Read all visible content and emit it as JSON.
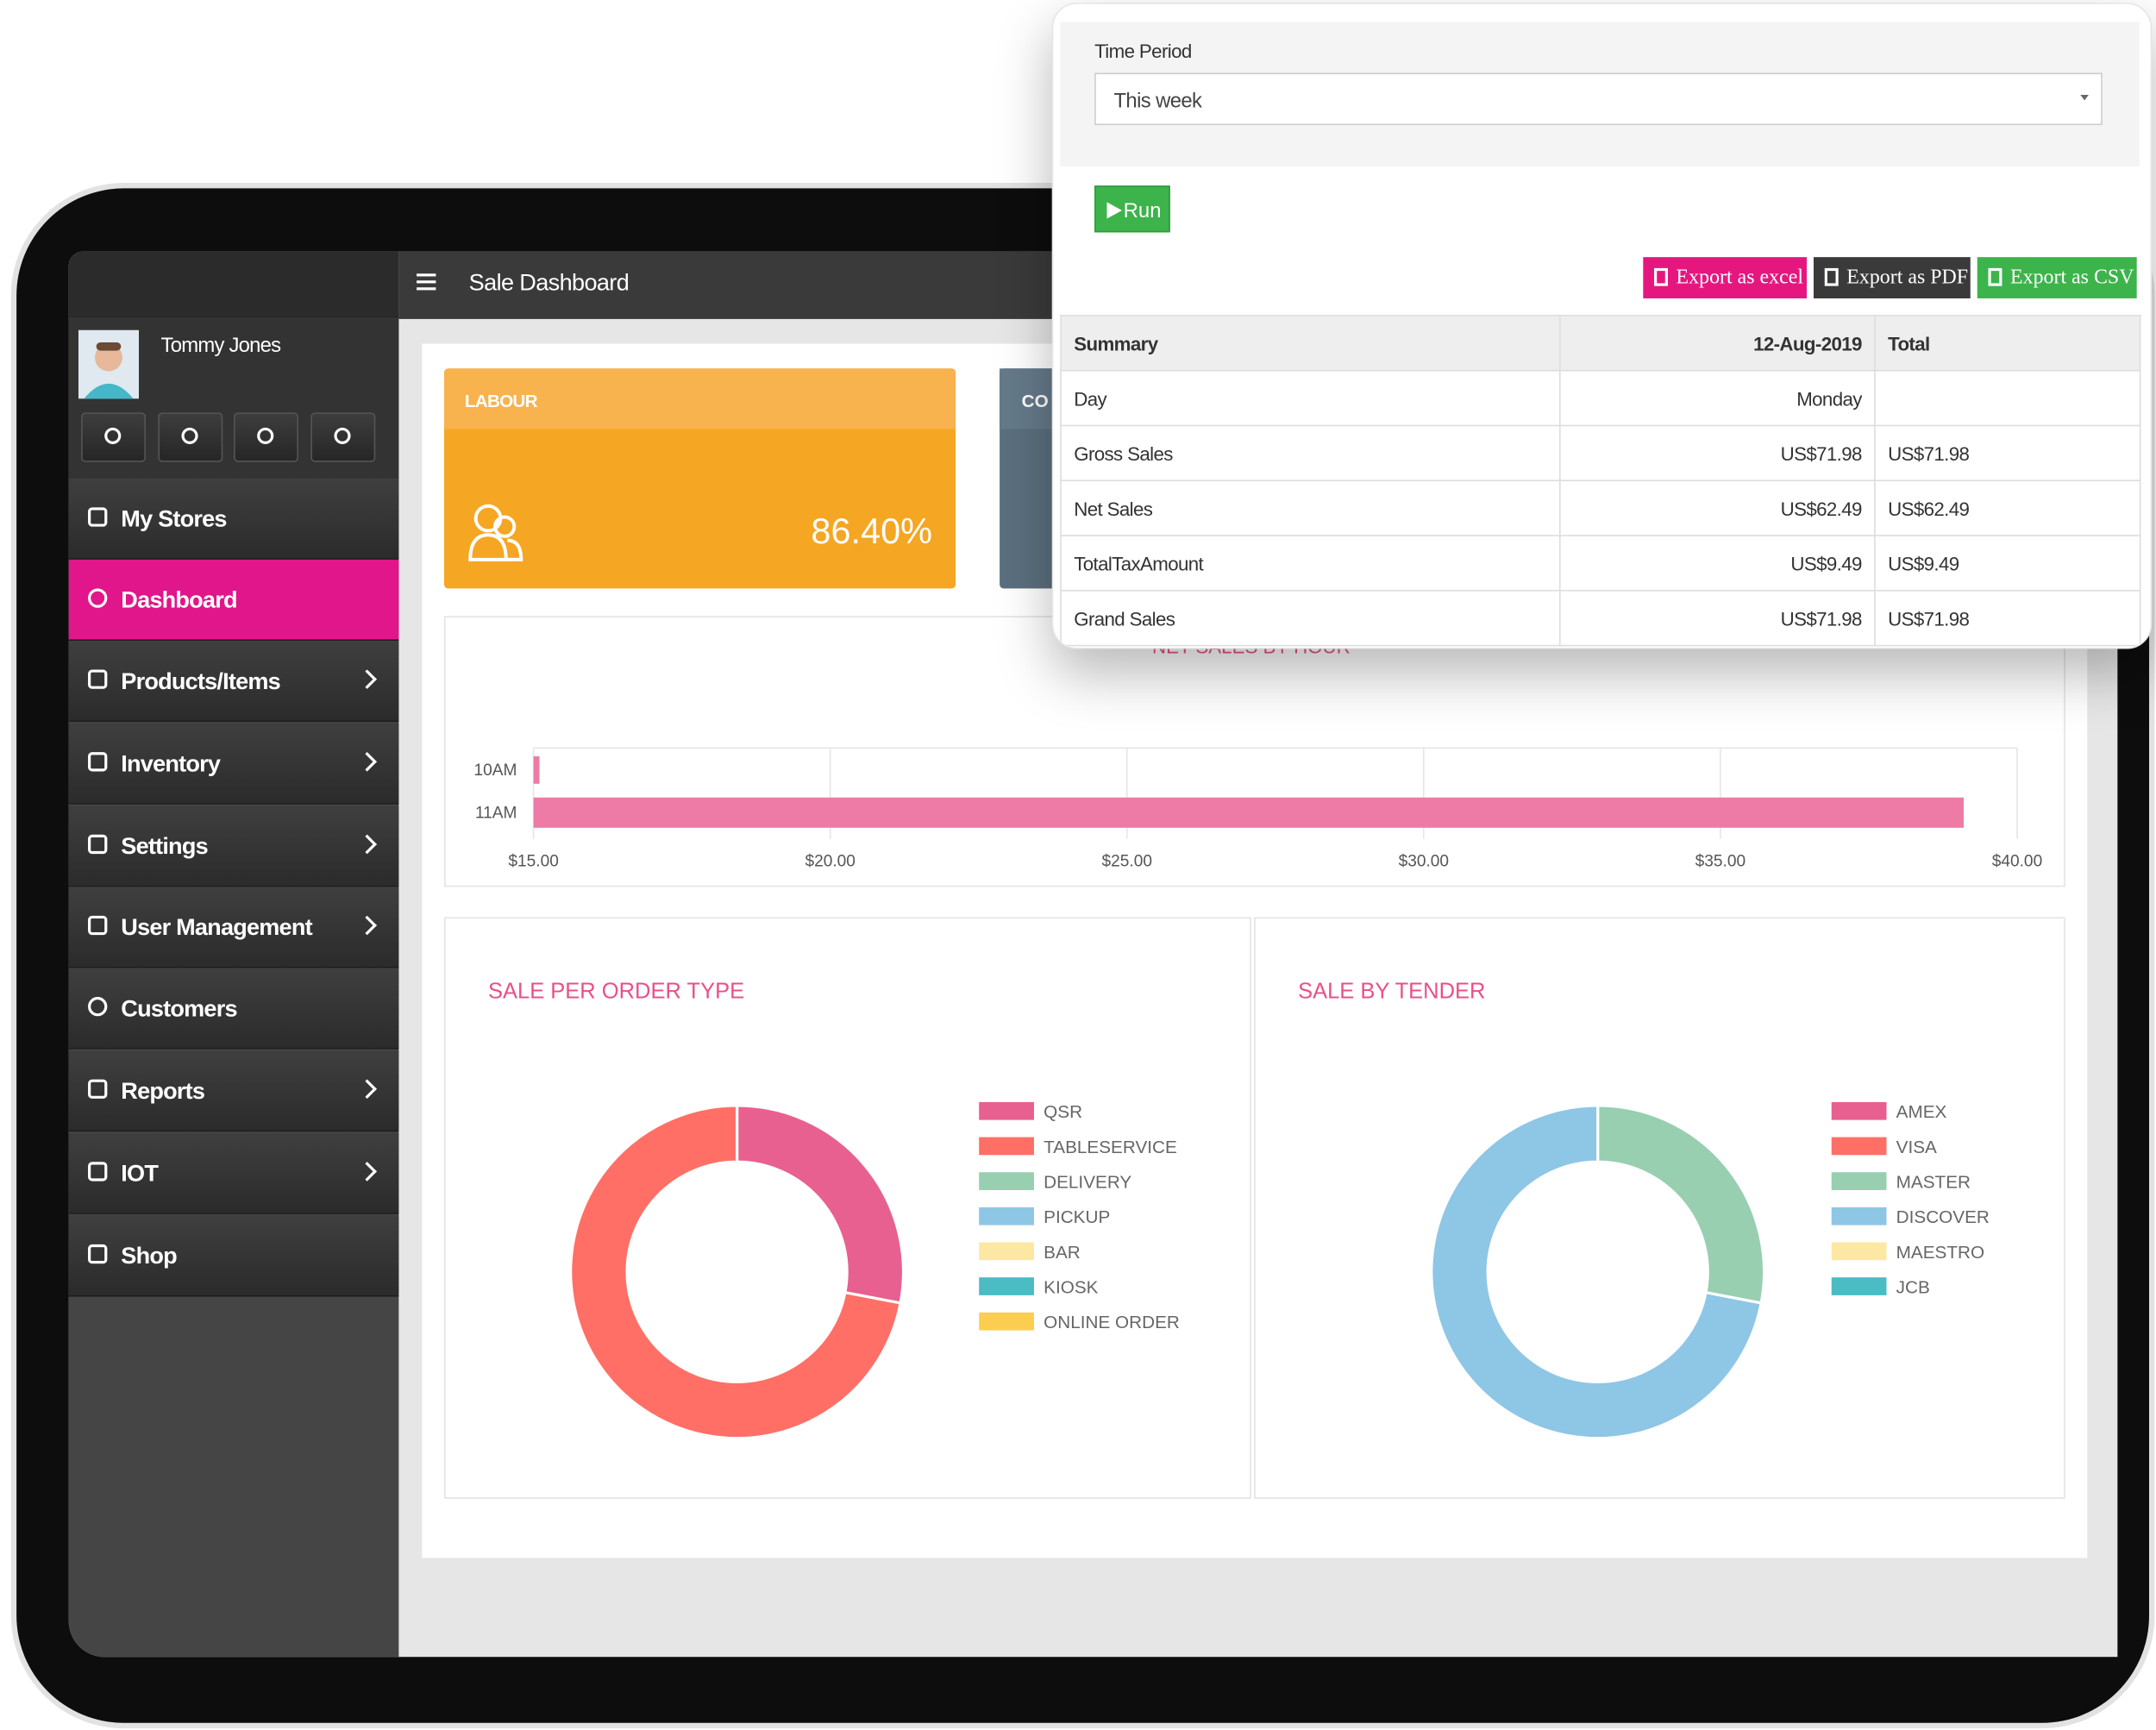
{
  "header": {
    "title": "Sale Dashboard"
  },
  "user": {
    "name": "Tommy Jones"
  },
  "sidebar": {
    "menu": [
      "My Stores",
      "Dashboard",
      "Products/Items",
      "Inventory",
      "Settings",
      "User Management",
      "Customers",
      "Reports",
      "IOT",
      "Shop"
    ]
  },
  "cards": [
    {
      "title": "LABOUR",
      "value": "86.40%"
    },
    {
      "title": "CO"
    }
  ],
  "report": {
    "time_period_label": "Time Period",
    "time_period": "This week",
    "run": "Run",
    "exports": [
      "Export as excel",
      "Export as PDF",
      "Export as CSV"
    ],
    "table": {
      "header": [
        "Summary",
        "12-Aug-2019",
        "Total"
      ],
      "rows": [
        [
          "Day",
          "Monday"
        ],
        [
          "Gross Sales",
          "US$71.98",
          "US$71.98"
        ],
        [
          "Net Sales",
          "US$62.49",
          "US$62.49"
        ],
        [
          "TotalTaxAmount",
          "US$9.49",
          "US$9.49"
        ],
        [
          "Grand Sales",
          "US$71.98",
          "US$71.98"
        ]
      ]
    }
  },
  "chart_data": [
    {
      "type": "bar",
      "orientation": "horizontal",
      "title": "NET SALES BY HOUR",
      "categories": [
        "10AM",
        "11AM"
      ],
      "values": [
        15.1,
        39.1
      ],
      "color": "#ee7aa6",
      "xlim": [
        15,
        40
      ],
      "xticks": [
        {
          "value": 15,
          "label": "$15.00"
        },
        {
          "value": 20,
          "label": "$20.00"
        },
        {
          "value": 25,
          "label": "$25.00"
        },
        {
          "value": 30,
          "label": "$30.00"
        },
        {
          "value": 35,
          "label": "$35.00"
        },
        {
          "value": 40,
          "label": "$40.00"
        }
      ],
      "grid": true
    },
    {
      "type": "pie",
      "title": "SALE PER ORDER TYPE",
      "categories": [
        "QSR",
        "TABLESERVICE",
        "DELIVERY",
        "PICKUP",
        "BAR",
        "KIOSK",
        "ONLINE ORDER"
      ],
      "values": [
        28,
        72,
        0,
        0,
        0,
        0,
        0
      ],
      "colors": [
        "#e8608f",
        "#ff6f66",
        "#97cfb0",
        "#8ec6e6",
        "#fde8a3",
        "#4bbcc4",
        "#fcce4f"
      ]
    },
    {
      "type": "pie",
      "title": "SALE BY TENDER",
      "categories": [
        "AMEX",
        "VISA",
        "MASTER",
        "DISCOVER",
        "MAESTRO",
        "JCB"
      ],
      "values": [
        0,
        0,
        28,
        72,
        0,
        0
      ],
      "colors": [
        "#e8608f",
        "#ff6f66",
        "#97cfb0",
        "#8ec6e6",
        "#fde8a3",
        "#4bbcc4"
      ]
    }
  ]
}
